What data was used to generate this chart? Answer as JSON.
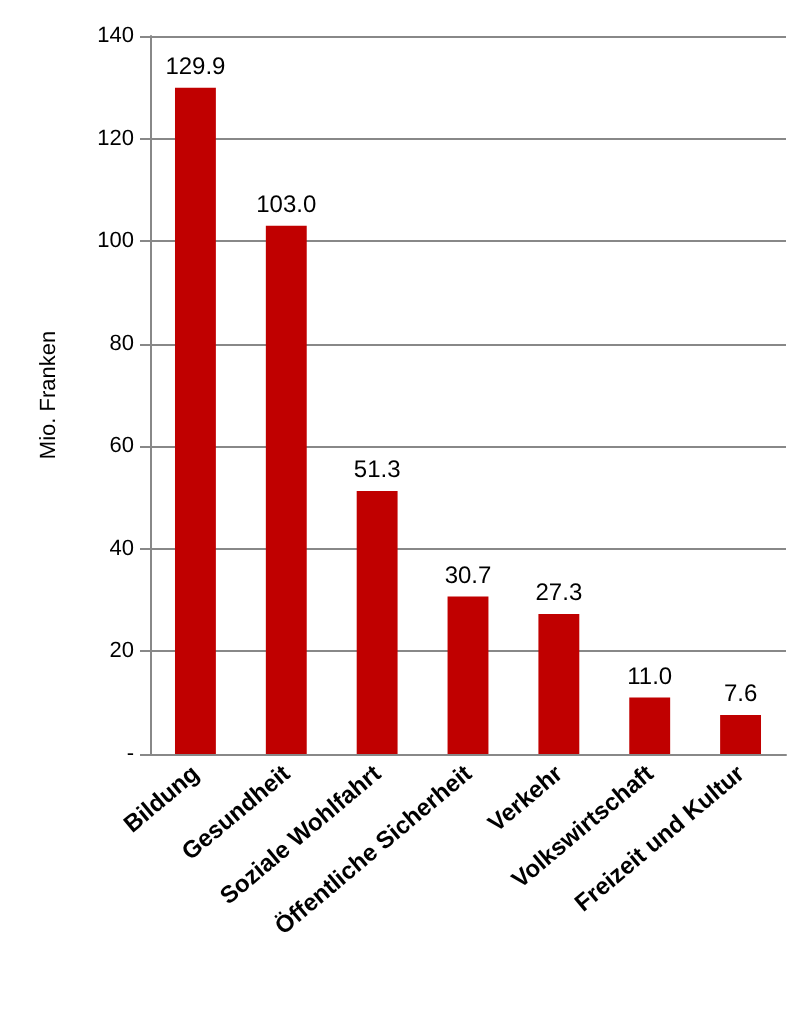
{
  "chart_data": {
    "type": "bar",
    "ylabel": "Mio. Franken",
    "categories": [
      "Bildung",
      "Gesundheit",
      "Soziale Wohlfahrt",
      "Öffentliche Sicherheit",
      "Verkehr",
      "Volkswirtschaft",
      "Freizeit und Kultur"
    ],
    "values": [
      129.9,
      103.0,
      51.3,
      30.7,
      27.3,
      11.0,
      7.6
    ],
    "value_labels": [
      "129.9",
      "103.0",
      "51.3",
      "30.7",
      "27.3",
      "11.0",
      "7.6"
    ],
    "color": "#c00000",
    "ylim": [
      0,
      140
    ],
    "yticks": [
      {
        "value": 0,
        "label": "-"
      },
      20,
      40,
      60,
      80,
      100,
      120,
      140
    ],
    "grid": "y"
  }
}
